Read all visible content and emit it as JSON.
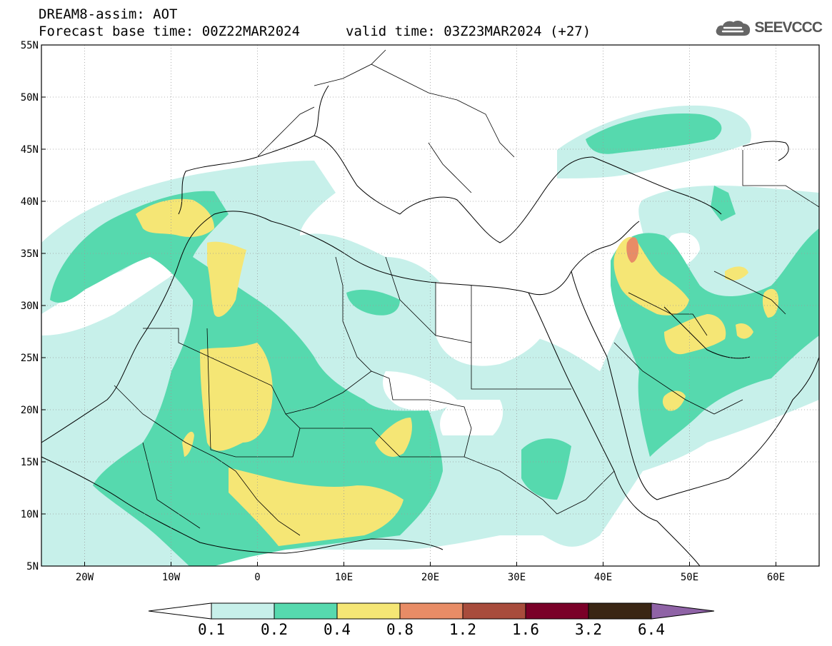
{
  "header": {
    "line1": "DREAM8-assim: AOT",
    "line2": "Forecast base time: 00Z22MAR2024",
    "line3": "valid time: 03Z23MAR2024 (+27)"
  },
  "logo": {
    "text": "SEEVCCC",
    "icon": "cloud-icon"
  },
  "map": {
    "lon_range": [
      -25,
      65
    ],
    "lat_range": [
      5,
      55
    ],
    "lon_ticks": [
      "20W",
      "10W",
      "0",
      "10E",
      "20E",
      "30E",
      "40E",
      "50E",
      "60E"
    ],
    "lat_ticks": [
      "55N",
      "50N",
      "45N",
      "40N",
      "35N",
      "30N",
      "25N",
      "20N",
      "15N",
      "10N",
      "5N"
    ],
    "grid": true
  },
  "colorbar": {
    "labels": [
      "0.1",
      "0.2",
      "0.4",
      "0.8",
      "1.2",
      "1.6",
      "3.2",
      "6.4"
    ],
    "colors": [
      "#c7f0ea",
      "#56d9ae",
      "#f5e675",
      "#e88c66",
      "#a84c3c",
      "#7a0028",
      "#3a2614",
      "#8f63a6"
    ]
  }
}
